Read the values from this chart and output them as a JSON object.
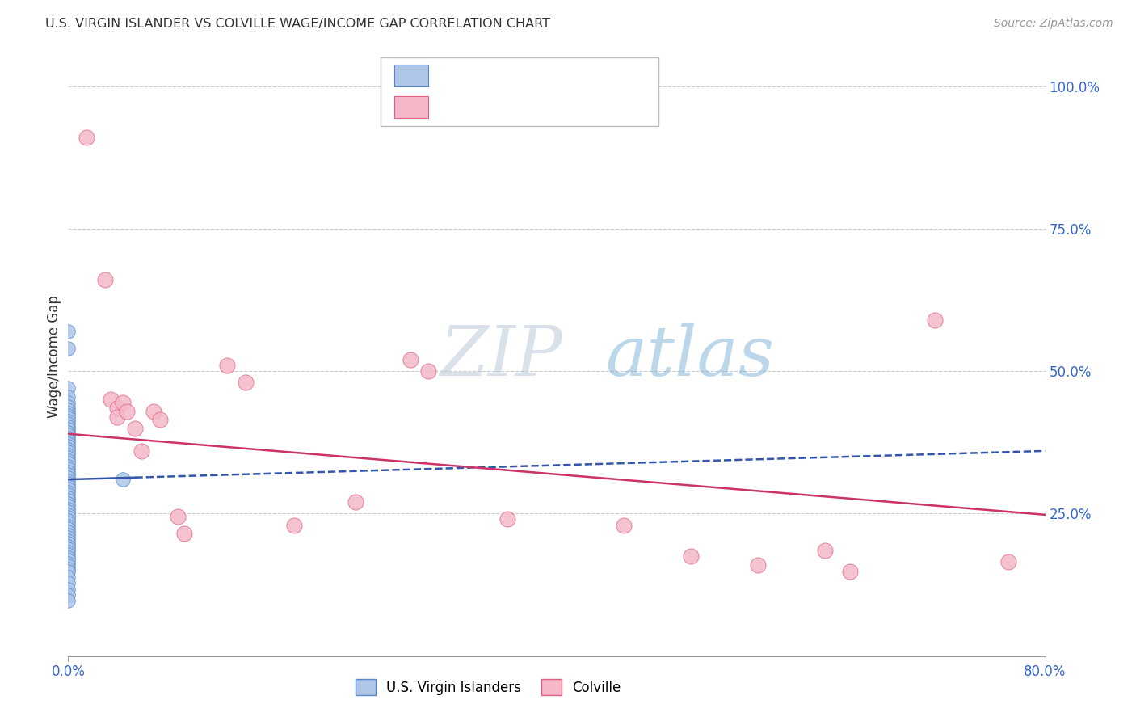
{
  "title": "U.S. VIRGIN ISLANDER VS COLVILLE WAGE/INCOME GAP CORRELATION CHART",
  "source": "Source: ZipAtlas.com",
  "ylabel": "Wage/Income Gap",
  "watermark_zip": "ZIP",
  "watermark_atlas": "atlas",
  "legend_label_blue": "U.S. Virgin Islanders",
  "legend_label_pink": "Colville",
  "blue_color": "#aec6e8",
  "pink_color": "#f4b8c8",
  "blue_edge_color": "#5588cc",
  "pink_edge_color": "#e06080",
  "blue_line_color": "#3355aa",
  "pink_line_color": "#cc3366",
  "text_color_dark": "#333333",
  "text_color_blue": "#3366cc",
  "text_color_gray": "#999999",
  "grid_color": "#cccccc",
  "blue_scatter": [
    [
      0.0,
      0.57
    ],
    [
      0.0,
      0.54
    ],
    [
      0.0,
      0.47
    ],
    [
      0.0,
      0.455
    ],
    [
      0.0,
      0.445
    ],
    [
      0.0,
      0.438
    ],
    [
      0.0,
      0.432
    ],
    [
      0.0,
      0.427
    ],
    [
      0.0,
      0.422
    ],
    [
      0.0,
      0.418
    ],
    [
      0.0,
      0.413
    ],
    [
      0.0,
      0.408
    ],
    [
      0.0,
      0.403
    ],
    [
      0.0,
      0.398
    ],
    [
      0.0,
      0.393
    ],
    [
      0.0,
      0.388
    ],
    [
      0.0,
      0.383
    ],
    [
      0.0,
      0.378
    ],
    [
      0.0,
      0.373
    ],
    [
      0.0,
      0.368
    ],
    [
      0.0,
      0.363
    ],
    [
      0.0,
      0.358
    ],
    [
      0.0,
      0.353
    ],
    [
      0.0,
      0.348
    ],
    [
      0.0,
      0.343
    ],
    [
      0.0,
      0.338
    ],
    [
      0.0,
      0.333
    ],
    [
      0.0,
      0.328
    ],
    [
      0.0,
      0.323
    ],
    [
      0.0,
      0.318
    ],
    [
      0.0,
      0.313
    ],
    [
      0.0,
      0.308
    ],
    [
      0.0,
      0.303
    ],
    [
      0.0,
      0.298
    ],
    [
      0.0,
      0.293
    ],
    [
      0.0,
      0.288
    ],
    [
      0.0,
      0.283
    ],
    [
      0.0,
      0.278
    ],
    [
      0.0,
      0.273
    ],
    [
      0.0,
      0.268
    ],
    [
      0.0,
      0.263
    ],
    [
      0.0,
      0.258
    ],
    [
      0.0,
      0.253
    ],
    [
      0.0,
      0.248
    ],
    [
      0.0,
      0.243
    ],
    [
      0.0,
      0.238
    ],
    [
      0.0,
      0.233
    ],
    [
      0.0,
      0.228
    ],
    [
      0.0,
      0.223
    ],
    [
      0.0,
      0.218
    ],
    [
      0.0,
      0.213
    ],
    [
      0.0,
      0.208
    ],
    [
      0.0,
      0.203
    ],
    [
      0.0,
      0.198
    ],
    [
      0.0,
      0.193
    ],
    [
      0.0,
      0.188
    ],
    [
      0.0,
      0.183
    ],
    [
      0.0,
      0.178
    ],
    [
      0.0,
      0.173
    ],
    [
      0.0,
      0.168
    ],
    [
      0.0,
      0.163
    ],
    [
      0.0,
      0.158
    ],
    [
      0.0,
      0.153
    ],
    [
      0.0,
      0.148
    ],
    [
      0.0,
      0.138
    ],
    [
      0.0,
      0.128
    ],
    [
      0.0,
      0.118
    ],
    [
      0.0,
      0.108
    ],
    [
      0.0,
      0.098
    ],
    [
      0.045,
      0.31
    ]
  ],
  "pink_scatter": [
    [
      0.015,
      0.91
    ],
    [
      0.03,
      0.66
    ],
    [
      0.035,
      0.45
    ],
    [
      0.04,
      0.435
    ],
    [
      0.04,
      0.42
    ],
    [
      0.045,
      0.445
    ],
    [
      0.048,
      0.43
    ],
    [
      0.055,
      0.4
    ],
    [
      0.06,
      0.36
    ],
    [
      0.07,
      0.43
    ],
    [
      0.075,
      0.415
    ],
    [
      0.09,
      0.245
    ],
    [
      0.095,
      0.215
    ],
    [
      0.13,
      0.51
    ],
    [
      0.145,
      0.48
    ],
    [
      0.185,
      0.23
    ],
    [
      0.235,
      0.27
    ],
    [
      0.28,
      0.52
    ],
    [
      0.295,
      0.5
    ],
    [
      0.36,
      0.24
    ],
    [
      0.455,
      0.23
    ],
    [
      0.51,
      0.175
    ],
    [
      0.565,
      0.16
    ],
    [
      0.62,
      0.185
    ],
    [
      0.64,
      0.148
    ],
    [
      0.71,
      0.59
    ],
    [
      0.77,
      0.165
    ]
  ],
  "blue_trend_x": [
    0.0,
    0.8
  ],
  "blue_trend_y": [
    0.31,
    0.36
  ],
  "pink_trend_x": [
    0.0,
    0.8
  ],
  "pink_trend_y": [
    0.39,
    0.248
  ],
  "xlim": [
    0.0,
    0.8
  ],
  "ylim": [
    0.0,
    1.05
  ],
  "ytick_vals": [
    0.25,
    0.5,
    0.75,
    1.0
  ],
  "ytick_labels": [
    "25.0%",
    "50.0%",
    "75.0%",
    "100.0%"
  ]
}
